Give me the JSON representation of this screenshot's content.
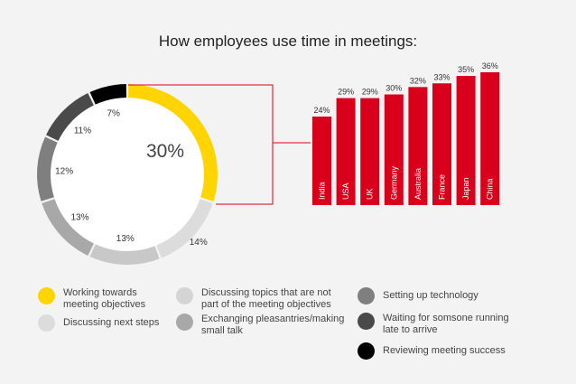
{
  "title": "How employees use time in meetings:",
  "chart_data": [
    {
      "type": "pie",
      "style": "donut",
      "center_label": "30%",
      "slices": [
        {
          "label": "Working towards meeting objectives",
          "value": 30,
          "display": "30%",
          "color": "#ffd400"
        },
        {
          "label": "Discussing next steps",
          "value": 14,
          "display": "14%",
          "color": "#dcdcdc"
        },
        {
          "label": "Discussing topics that are not part of the meeting objectives",
          "value": 13,
          "display": "13%",
          "color": "#c8c8c8"
        },
        {
          "label": "Exchanging pleasantries/making small talk",
          "value": 13,
          "display": "13%",
          "color": "#a8a8a8"
        },
        {
          "label": "Setting up technology",
          "value": 12,
          "display": "12%",
          "color": "#7f7f7f"
        },
        {
          "label": "Waiting for somsone running late to arrive",
          "value": 11,
          "display": "11%",
          "color": "#4a4a4a"
        },
        {
          "label": "Reviewing meeting success",
          "value": 7,
          "display": "7%",
          "color": "#000000"
        }
      ]
    },
    {
      "type": "bar",
      "categories": [
        "India",
        "USA",
        "UK",
        "Germany",
        "Australia",
        "France",
        "Japan",
        "China"
      ],
      "values": [
        24,
        29,
        29,
        30,
        32,
        33,
        35,
        36
      ],
      "value_labels": [
        "24%",
        "29%",
        "29%",
        "30%",
        "32%",
        "33%",
        "35%",
        "36%"
      ],
      "ylim": [
        0,
        36
      ],
      "color": "#d9001b"
    }
  ],
  "legend": {
    "items": [
      {
        "label": "Working towards\nmeeting objectives",
        "color": "#ffd400"
      },
      {
        "label": "Discussing next steps",
        "color": "#dcdcdc"
      },
      {
        "label": "Discussing topics that are not\npart of the meeting objectives",
        "color": "#d4d4d4"
      },
      {
        "label": "Exchanging pleasantries/making\nsmall talk",
        "color": "#a8a8a8"
      },
      {
        "label": "Setting up technology",
        "color": "#7f7f7f"
      },
      {
        "label": "Waiting for somsone running\nlate to arrive",
        "color": "#4a4a4a"
      },
      {
        "label": "Reviewing meeting success",
        "color": "#000000"
      }
    ]
  }
}
